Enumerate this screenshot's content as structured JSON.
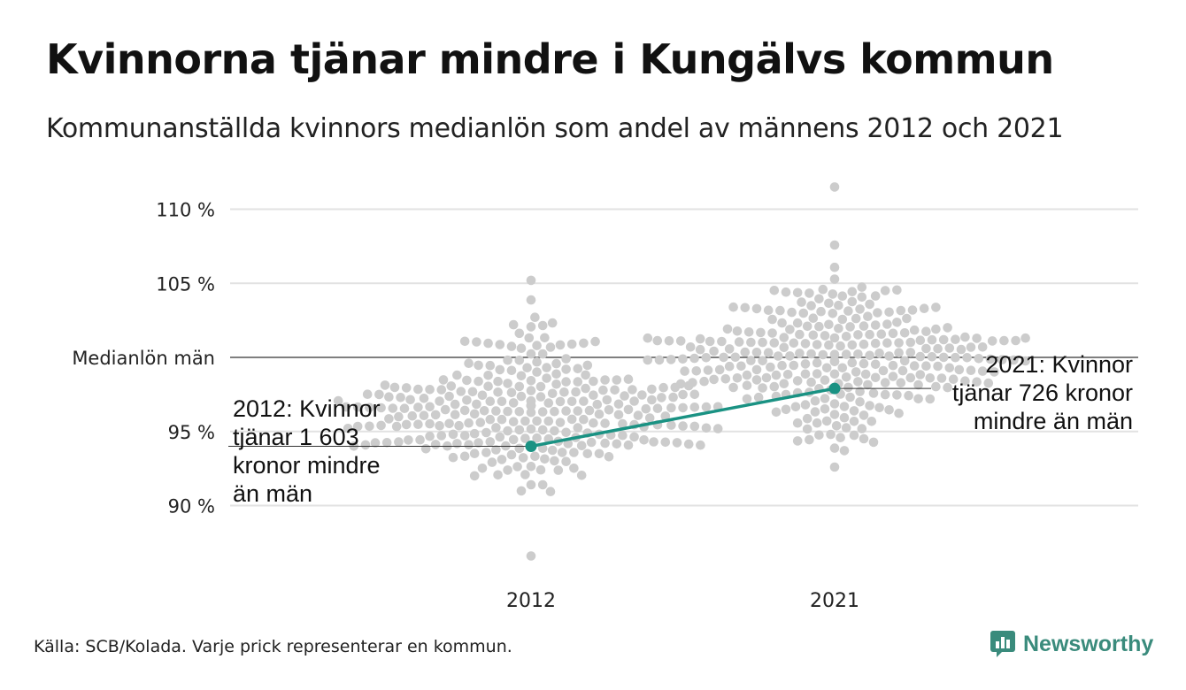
{
  "header": {
    "title": "Kvinnorna tjänar mindre i Kungälvs kommun",
    "subtitle": "Kommunanställda kvinnors medianlön som andel av männens 2012 och 2021"
  },
  "footer": {
    "source": "Källa: SCB/Kolada. Varje prick representerar en kommun.",
    "brand": "Newsworthy"
  },
  "colors": {
    "dots": "#cccccc",
    "highlight": "#1a9283",
    "grid": "#e2e2e2",
    "reference": "#333333",
    "brand": "#3a8b7c"
  },
  "annotations": {
    "left": [
      "2012: Kvinnor",
      "tjänar 1 603",
      "kronor mindre",
      "än män"
    ],
    "right": [
      "2021: Kvinnor",
      "tjänar 726 kronor",
      "mindre än män"
    ]
  },
  "chart_data": {
    "type": "scatter",
    "categories": [
      "2012",
      "2021"
    ],
    "ylim": [
      86,
      111.5
    ],
    "y_ticks": [
      {
        "value": 110,
        "label": "110 %"
      },
      {
        "value": 105,
        "label": "105 %"
      },
      {
        "value": 100,
        "label": "Medianlön män"
      },
      {
        "value": 95,
        "label": "95 %"
      },
      {
        "value": 90,
        "label": "90 %"
      }
    ],
    "reference_line": {
      "value": 100,
      "label": "Medianlön män"
    },
    "grid": true,
    "series": [
      {
        "name": "Kungälvs kommun",
        "points": [
          {
            "x": "2012",
            "y": 94.0
          },
          {
            "x": "2021",
            "y": 97.9
          }
        ]
      }
    ],
    "distribution": [
      {
        "x": "2012",
        "median": 96.3,
        "spread": 2.6,
        "ymin": 86.6,
        "ymax": 105.2,
        "n": 290
      },
      {
        "x": "2021",
        "median": 100.2,
        "spread": 2.4,
        "ymin": 92.6,
        "ymax": 111.5,
        "n": 290
      }
    ]
  }
}
